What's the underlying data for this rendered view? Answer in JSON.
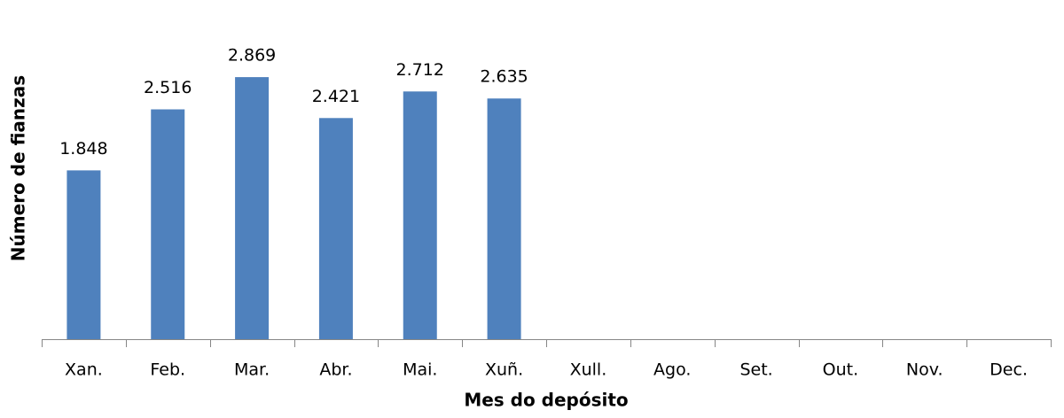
{
  "chart_data": {
    "type": "bar",
    "x_label": "Mes do depósito",
    "y_label": "Número de fianzas",
    "categories": [
      "Xan.",
      "Feb.",
      "Mar.",
      "Abr.",
      "Mai.",
      "Xuñ.",
      "Xull.",
      "Ago.",
      "Set.",
      "Out.",
      "Nov.",
      "Dec."
    ],
    "values": [
      1848,
      2516,
      2869,
      2421,
      2712,
      2635,
      null,
      null,
      null,
      null,
      null,
      null
    ],
    "value_labels": [
      "1.848",
      "2.516",
      "2.869",
      "2.421",
      "2.712",
      "2.635",
      null,
      null,
      null,
      null,
      null,
      null
    ],
    "color": "#4f81bd",
    "ylim": [
      0,
      3500
    ]
  }
}
